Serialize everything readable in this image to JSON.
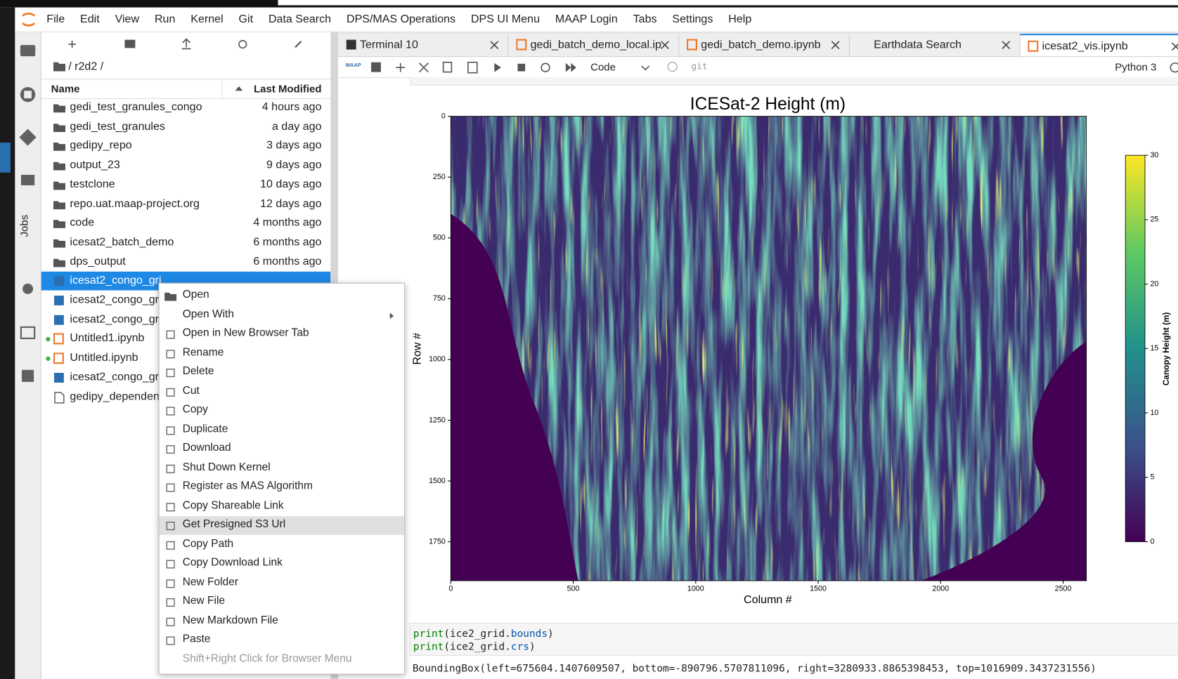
{
  "menubar": [
    "File",
    "Edit",
    "View",
    "Run",
    "Kernel",
    "Git",
    "Data Search",
    "DPS/MAS Operations",
    "DPS UI Menu",
    "MAAP Login",
    "Tabs",
    "Settings",
    "Help"
  ],
  "sidebar": {
    "jobs_label": "Jobs"
  },
  "file_browser": {
    "breadcrumb": "/ r2d2 /",
    "columns": [
      "Name",
      "Last Modified"
    ],
    "rows": [
      {
        "name": "gedi_test_granules_congo",
        "modified": "4 hours ago",
        "kind": "folder"
      },
      {
        "name": "gedi_test_granules",
        "modified": "a day ago",
        "kind": "folder"
      },
      {
        "name": "gedipy_repo",
        "modified": "3 days ago",
        "kind": "folder"
      },
      {
        "name": "output_23",
        "modified": "9 days ago",
        "kind": "folder"
      },
      {
        "name": "testclone",
        "modified": "10 days ago",
        "kind": "folder"
      },
      {
        "name": "repo.uat.maap-project.org",
        "modified": "12 days ago",
        "kind": "folder"
      },
      {
        "name": "code",
        "modified": "4 months ago",
        "kind": "folder"
      },
      {
        "name": "icesat2_batch_demo",
        "modified": "6 months ago",
        "kind": "folder"
      },
      {
        "name": "dps_output",
        "modified": "6 months ago",
        "kind": "folder"
      },
      {
        "name": "icesat2_congo_gri",
        "kind": "image",
        "selected": true
      },
      {
        "name": "icesat2_congo_gr",
        "kind": "image"
      },
      {
        "name": "icesat2_congo_gr",
        "kind": "image"
      },
      {
        "name": "Untitled1.ipynb",
        "kind": "notebook",
        "running": true
      },
      {
        "name": "Untitled.ipynb",
        "kind": "notebook",
        "running": true
      },
      {
        "name": "icesat2_congo_gr",
        "kind": "image"
      },
      {
        "name": "gedipy_dependen",
        "kind": "file"
      }
    ]
  },
  "tabs": [
    {
      "label": "Terminal 10",
      "kind": "terminal"
    },
    {
      "label": "gedi_batch_demo_local.ip",
      "kind": "notebook"
    },
    {
      "label": "gedi_batch_demo.ipynb",
      "kind": "notebook"
    },
    {
      "label": "Earthdata Search",
      "kind": "none"
    },
    {
      "label": "icesat2_vis.ipynb",
      "kind": "notebook",
      "active": true
    }
  ],
  "notebook_toolbar": {
    "logo": "MAAP",
    "cell_type": "Code",
    "git": "git",
    "kernel": "Python 3"
  },
  "context_menu": {
    "items": [
      "Open",
      "Open With",
      "Open in New Browser Tab",
      "Rename",
      "Delete",
      "Cut",
      "Copy",
      "Duplicate",
      "Download",
      "Shut Down Kernel",
      "Register as MAS Algorithm",
      "Copy Shareable Link",
      "Get Presigned S3 Url",
      "Copy Path",
      "Copy Download Link",
      "New Folder",
      "New File",
      "New Markdown File",
      "Paste"
    ],
    "highlighted": 12,
    "hint": "Shift+Right Click for Browser Menu"
  },
  "figure": {
    "title": "ICESat-2 Height (m)",
    "xlabel": "Column #",
    "ylabel": "Row #",
    "xlim": [
      0,
      2595
    ],
    "xticks": [
      0,
      500,
      1000,
      1500,
      2000,
      2500
    ],
    "ylim": [
      0,
      1910
    ],
    "yticks": [
      0,
      250,
      500,
      750,
      1000,
      1250,
      1500,
      1750
    ],
    "colorbar": {
      "label": "Canopy Height (m)",
      "lim": [
        0,
        30
      ],
      "ticks": [
        0,
        5,
        10,
        15,
        20,
        25,
        30
      ]
    }
  },
  "code_cell": {
    "lines": [
      [
        {
          "text": "print",
          "color": "#008000"
        },
        {
          "text": "(ice2_grid.",
          "color": "#222"
        },
        {
          "text": "bounds",
          "color": "#0055aa"
        },
        {
          "text": ")",
          "color": "#222"
        }
      ],
      [
        {
          "text": "print",
          "color": "#008000"
        },
        {
          "text": "(ice2_grid.",
          "color": "#222"
        },
        {
          "text": "crs",
          "color": "#0055aa"
        },
        {
          "text": ")",
          "color": "#222"
        }
      ]
    ]
  },
  "output": "BoundingBox(left=675604.1407609507, bottom=-890796.5707811096, right=3280933.8865398453, top=1016909.3437231556)"
}
